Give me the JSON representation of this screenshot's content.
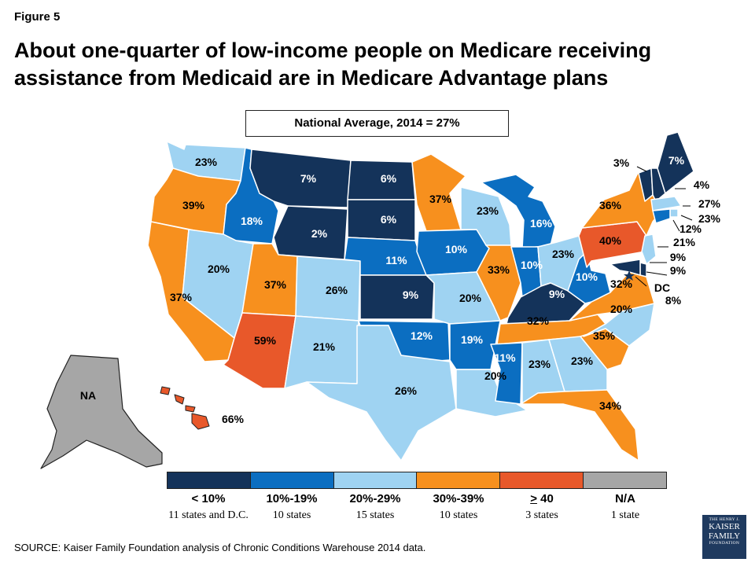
{
  "figure_label": "Figure 5",
  "title": "About one-quarter of low-income people on Medicare receiving assistance from Medicaid are in Medicare Advantage plans",
  "national_average": "National Average, 2014 = 27%",
  "colors": {
    "lt10": "#14335a",
    "r10_19": "#0b6ec1",
    "r20_29": "#9fd3f2",
    "r30_39": "#f7901e",
    "gt40": "#e8582a",
    "na": "#a6a6a6"
  },
  "legend": [
    {
      "range": "< 10%",
      "count": "11 states and D.C.",
      "color": "#14335a"
    },
    {
      "range": "10%-19%",
      "count": "10 states",
      "color": "#0b6ec1"
    },
    {
      "range": "20%-29%",
      "count": "15 states",
      "color": "#9fd3f2"
    },
    {
      "range": "30%-39%",
      "count": "10 states",
      "color": "#f7901e"
    },
    {
      "range": "> 40",
      "count": "3 states",
      "color": "#e8582a"
    },
    {
      "range": "N/A",
      "count": "1 state",
      "color": "#a6a6a6"
    }
  ],
  "states": [
    {
      "id": "WA",
      "value": "23%",
      "cat": "r20_29"
    },
    {
      "id": "OR",
      "value": "39%",
      "cat": "r30_39"
    },
    {
      "id": "CA",
      "value": "37%",
      "cat": "r30_39"
    },
    {
      "id": "ID",
      "value": "18%",
      "cat": "r10_19"
    },
    {
      "id": "NV",
      "value": "20%",
      "cat": "r20_29"
    },
    {
      "id": "MT",
      "value": "7%",
      "cat": "lt10"
    },
    {
      "id": "WY",
      "value": "2%",
      "cat": "lt10"
    },
    {
      "id": "UT",
      "value": "37%",
      "cat": "r30_39"
    },
    {
      "id": "AZ",
      "value": "59%",
      "cat": "gt40"
    },
    {
      "id": "CO",
      "value": "26%",
      "cat": "r20_29"
    },
    {
      "id": "NM",
      "value": "21%",
      "cat": "r20_29"
    },
    {
      "id": "ND",
      "value": "6%",
      "cat": "lt10"
    },
    {
      "id": "SD",
      "value": "6%",
      "cat": "lt10"
    },
    {
      "id": "NE",
      "value": "11%",
      "cat": "r10_19"
    },
    {
      "id": "KS",
      "value": "9%",
      "cat": "lt10"
    },
    {
      "id": "OK",
      "value": "12%",
      "cat": "r10_19"
    },
    {
      "id": "TX",
      "value": "26%",
      "cat": "r20_29"
    },
    {
      "id": "MN",
      "value": "37%",
      "cat": "r30_39"
    },
    {
      "id": "IA",
      "value": "10%",
      "cat": "r10_19"
    },
    {
      "id": "MO",
      "value": "20%",
      "cat": "r20_29"
    },
    {
      "id": "AR",
      "value": "19%",
      "cat": "r10_19"
    },
    {
      "id": "LA",
      "value": "20%",
      "cat": "r20_29"
    },
    {
      "id": "WI",
      "value": "23%",
      "cat": "r20_29"
    },
    {
      "id": "IL",
      "value": "33%",
      "cat": "r30_39"
    },
    {
      "id": "MI",
      "value": "16%",
      "cat": "r10_19"
    },
    {
      "id": "IN",
      "value": "10%",
      "cat": "r10_19"
    },
    {
      "id": "OH",
      "value": "23%",
      "cat": "r20_29"
    },
    {
      "id": "KY",
      "value": "9%",
      "cat": "lt10"
    },
    {
      "id": "TN",
      "value": "32%",
      "cat": "r30_39"
    },
    {
      "id": "MS",
      "value": "11%",
      "cat": "r10_19"
    },
    {
      "id": "AL",
      "value": "23%",
      "cat": "r20_29"
    },
    {
      "id": "GA",
      "value": "23%",
      "cat": "r20_29"
    },
    {
      "id": "FL",
      "value": "34%",
      "cat": "r30_39"
    },
    {
      "id": "SC",
      "value": "35%",
      "cat": "r30_39"
    },
    {
      "id": "NC",
      "value": "20%",
      "cat": "r20_29"
    },
    {
      "id": "VA",
      "value": "32%",
      "cat": "r30_39"
    },
    {
      "id": "WV",
      "value": "10%",
      "cat": "r10_19"
    },
    {
      "id": "PA",
      "value": "40%",
      "cat": "gt40"
    },
    {
      "id": "NY",
      "value": "36%",
      "cat": "r30_39"
    },
    {
      "id": "VT",
      "value": "3%",
      "cat": "lt10"
    },
    {
      "id": "NH",
      "value": "4%",
      "cat": "lt10"
    },
    {
      "id": "ME",
      "value": "7%",
      "cat": "lt10"
    },
    {
      "id": "MA",
      "value": "27%",
      "cat": "r20_29"
    },
    {
      "id": "RI",
      "value": "23%",
      "cat": "r20_29"
    },
    {
      "id": "CT",
      "value": "12%",
      "cat": "r10_19"
    },
    {
      "id": "NJ",
      "value": "21%",
      "cat": "r20_29"
    },
    {
      "id": "DE",
      "value": "9%",
      "cat": "lt10"
    },
    {
      "id": "MD",
      "value": "9%",
      "cat": "lt10"
    },
    {
      "id": "DC",
      "value": "DC",
      "cat": "lt10"
    },
    {
      "id": "DC_VAL",
      "value": "8%",
      "cat": "lt10"
    },
    {
      "id": "HI",
      "value": "66%",
      "cat": "gt40"
    },
    {
      "id": "AK",
      "value": "NA",
      "cat": "na"
    }
  ],
  "source": "SOURCE: Kaiser Family Foundation  analysis of Chronic Conditions Warehouse 2014 data.",
  "logo": {
    "line1": "THE HENRY J.",
    "line2": "KAISER",
    "line3": "FAMILY",
    "line4": "FOUNDATION"
  }
}
